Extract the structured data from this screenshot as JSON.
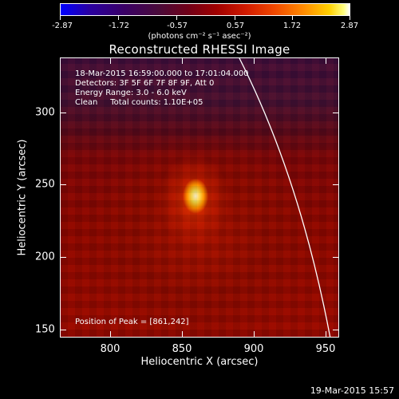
{
  "colorbar": {
    "ticks": [
      "-2.87",
      "-1.72",
      "-0.57",
      "0.57",
      "1.72",
      "2.87"
    ],
    "units": "(photons cm⁻² s⁻¹ asec⁻²)"
  },
  "title": "Reconstructed RHESSI Image",
  "info": {
    "time_range": "18-Mar-2015 16:59:00.000 to 17:01:04.000",
    "detectors": "Detectors: 3F 5F 6F 7F 8F 9F, Att 0",
    "energy_range": "Energy Range: 3.0 - 6.0 keV",
    "method": "Clean     Total counts: 1.10E+05"
  },
  "peak_position": "Position of Peak = [861,242]",
  "axes": {
    "x_label": "Heliocentric X (arcsec)",
    "y_label": "Heliocentric Y (arcsec)",
    "x_ticks": [
      "800",
      "850",
      "900",
      "950"
    ],
    "y_ticks": [
      "300",
      "250",
      "200",
      "150"
    ]
  },
  "timestamp": "19-Mar-2015 15:57"
}
